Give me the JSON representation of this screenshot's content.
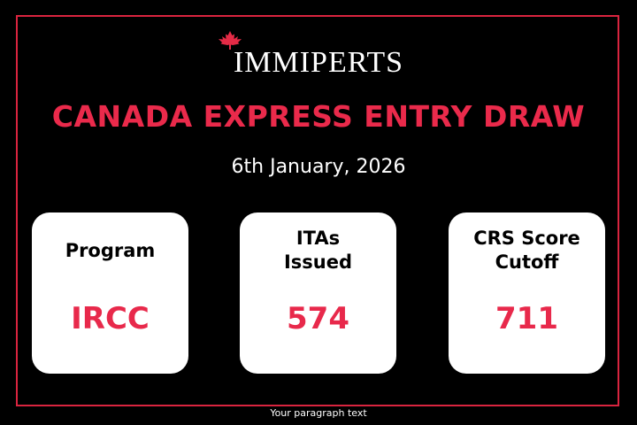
{
  "header": {
    "brand": "IMMIPERTS",
    "title": "CANADA EXPRESS ENTRY DRAW",
    "date": "6th January, 2026"
  },
  "cards": [
    {
      "label": [
        "Program"
      ],
      "value": "IRCC"
    },
    {
      "label": [
        "ITAs",
        "Issued"
      ],
      "value": 574
    },
    {
      "label": [
        "CRS Score",
        "Cutoff"
      ],
      "value": 711
    }
  ],
  "footer": "Your paragraph text"
}
